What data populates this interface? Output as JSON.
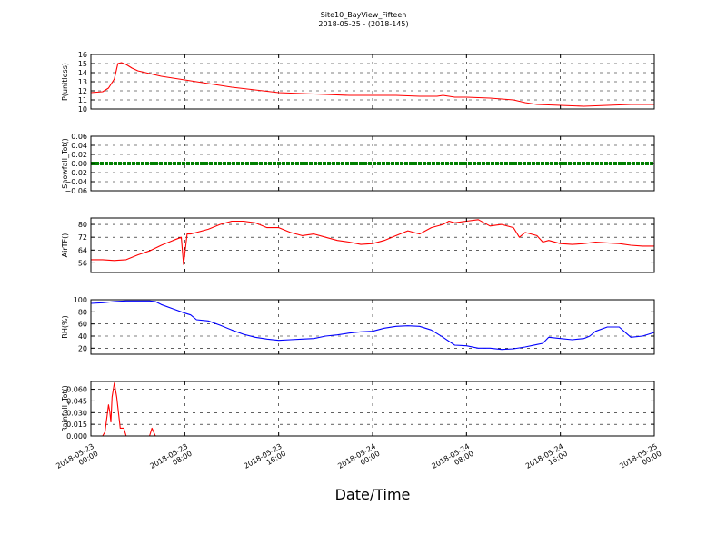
{
  "figure": {
    "title_line1": "Site10_BayView_Fifteen",
    "title_line2": "2018-05-25 - (2018-145)",
    "xlabel": "Date/Time"
  },
  "chart_data": [
    {
      "type": "line",
      "ylabel": "P(unitless)",
      "ylim": [
        10,
        16
      ],
      "yticks": [
        10,
        11,
        12,
        13,
        14,
        15,
        16
      ],
      "color": "#ff0000",
      "grid": true,
      "x_unit": "hours since 2018-05-23 00:00",
      "x": [
        0,
        1,
        1.5,
        2,
        2.3,
        2.6,
        3,
        3.5,
        4,
        5,
        6,
        7,
        8,
        9,
        10,
        12,
        14,
        16,
        18,
        20,
        22,
        24,
        26,
        28,
        29.5,
        30,
        31,
        32,
        34,
        36,
        37,
        38,
        40,
        42,
        44,
        46,
        48
      ],
      "y": [
        11.8,
        11.9,
        12.3,
        13.3,
        15.0,
        15.1,
        14.9,
        14.5,
        14.2,
        13.9,
        13.6,
        13.4,
        13.2,
        13.0,
        12.8,
        12.4,
        12.1,
        11.8,
        11.7,
        11.6,
        11.5,
        11.5,
        11.5,
        11.4,
        11.4,
        11.5,
        11.3,
        11.3,
        11.2,
        11.0,
        10.7,
        10.5,
        10.4,
        10.3,
        10.4,
        10.5,
        10.5
      ]
    },
    {
      "type": "line",
      "ylabel": "Snowfall_Tot()",
      "ylim": [
        -0.06,
        0.06
      ],
      "yticks": [
        -0.06,
        -0.04,
        -0.02,
        0.0,
        0.02,
        0.04,
        0.06
      ],
      "ytick_labels": [
        "−0.06",
        "−0.04",
        "−0.02",
        "0.00",
        "0.02",
        "0.04",
        "0.06"
      ],
      "color": "#007f00",
      "grid": true,
      "x": [
        0,
        48
      ],
      "y": [
        0.0,
        0.0
      ]
    },
    {
      "type": "line",
      "ylabel": "AirTF()",
      "ylim": [
        50,
        84
      ],
      "yticks": [
        56,
        64,
        72,
        80
      ],
      "color": "#ff0000",
      "grid": true,
      "x": [
        0,
        1,
        2,
        3,
        4,
        5,
        6,
        7,
        7.7,
        7.9,
        8.2,
        8.5,
        9,
        10,
        11,
        12,
        13,
        14,
        15,
        16,
        17,
        18,
        19,
        20,
        21,
        22,
        23,
        24,
        25,
        26,
        27,
        28,
        29,
        30,
        30.5,
        31,
        32,
        33,
        34,
        35,
        36,
        36.5,
        37,
        38,
        38.5,
        39,
        40,
        41,
        42,
        43,
        44,
        45,
        46,
        47,
        48
      ],
      "y": [
        58,
        58,
        57.5,
        58,
        61,
        63.5,
        67,
        70,
        72,
        55,
        74,
        74,
        75,
        77,
        80,
        82,
        82,
        81,
        78,
        78,
        75,
        73,
        74,
        72,
        70,
        69,
        67.5,
        68,
        70,
        73,
        76,
        74,
        78,
        80,
        82,
        81,
        82,
        83,
        79,
        80,
        78,
        72,
        75,
        73,
        69,
        70,
        68,
        67.5,
        68,
        69,
        68.5,
        68,
        67,
        66.5,
        66.5
      ]
    },
    {
      "type": "line",
      "ylabel": "RH(%)",
      "ylim": [
        10,
        100
      ],
      "yticks": [
        20,
        40,
        60,
        80,
        100
      ],
      "color": "#0000ff",
      "grid": true,
      "x": [
        0,
        1,
        2,
        3,
        4,
        5,
        5.5,
        6,
        7,
        8,
        8.5,
        9,
        10,
        11,
        12,
        13,
        14,
        15,
        16,
        17,
        18,
        19,
        20,
        21,
        22,
        23,
        24,
        25,
        26,
        27,
        28,
        29,
        30,
        31,
        32,
        33,
        34,
        35,
        36,
        37,
        38,
        38.5,
        39,
        40,
        41,
        42,
        42.5,
        43,
        44,
        45,
        46,
        47,
        48
      ],
      "y": [
        94,
        95,
        97,
        98,
        98,
        98,
        97,
        92,
        85,
        78,
        75,
        67,
        65,
        58,
        50,
        43,
        38,
        35,
        33,
        34,
        35,
        36,
        40,
        42,
        45,
        47,
        48,
        53,
        56,
        57,
        56,
        50,
        38,
        25,
        24,
        20,
        20,
        18,
        19,
        22,
        26,
        28,
        38,
        36,
        34,
        36,
        40,
        48,
        55,
        55,
        38,
        40,
        46
      ]
    },
    {
      "type": "line",
      "ylabel": "Rainfall_Tot()",
      "ylim": [
        0,
        0.07
      ],
      "yticks": [
        0.0,
        0.015,
        0.03,
        0.045,
        0.06
      ],
      "ytick_labels": [
        "0.000",
        "0.015",
        "0.030",
        "0.045",
        "0.060"
      ],
      "color": "#ff0000",
      "grid": true,
      "x": [
        0,
        1,
        1.2,
        1.5,
        1.6,
        1.7,
        1.8,
        2.0,
        2.2,
        2.5,
        2.8,
        3.0,
        3.3,
        5.0,
        5.2,
        5.5,
        5.8,
        48
      ],
      "y": [
        0,
        0,
        0.005,
        0.04,
        0.032,
        0.018,
        0.05,
        0.068,
        0.05,
        0.01,
        0.01,
        0.0,
        0.0,
        0.0,
        0.01,
        0.0,
        0.0,
        0.0
      ]
    }
  ],
  "xaxis": {
    "range_hours": [
      0,
      48
    ],
    "ticks_hours": [
      0,
      8,
      16,
      24,
      32,
      40,
      48
    ],
    "tick_labels": [
      [
        "2018-05-23",
        "00:00"
      ],
      [
        "2018-05-23",
        "08:00"
      ],
      [
        "2018-05-23",
        "16:00"
      ],
      [
        "2018-05-24",
        "00:00"
      ],
      [
        "2018-05-24",
        "08:00"
      ],
      [
        "2018-05-24",
        "16:00"
      ],
      [
        "2018-05-25",
        "00:00"
      ]
    ]
  }
}
